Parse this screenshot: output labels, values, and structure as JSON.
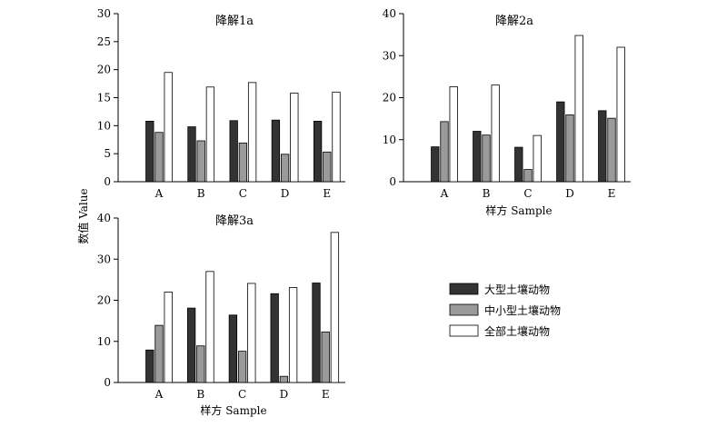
{
  "colors": {
    "large": "#333333",
    "medium": "#9a9a9a",
    "all": "#ffffff",
    "axis": "#000000"
  },
  "y_axis_shared_label": "数值 Value",
  "legend": {
    "items": [
      {
        "label": "大型土壤动物",
        "color": "#333333"
      },
      {
        "label": "中小型土壤动物",
        "color": "#9a9a9a"
      },
      {
        "label": "全部土壤动物",
        "color": "#ffffff"
      }
    ]
  },
  "chart_data": [
    {
      "type": "bar",
      "title": "降解1a",
      "xlabel": "",
      "ylabel": "数值 Value",
      "categories": [
        "A",
        "B",
        "C",
        "D",
        "E"
      ],
      "ylim": [
        0,
        30
      ],
      "yticks": [
        0,
        5,
        10,
        15,
        20,
        25,
        30
      ],
      "series": [
        {
          "name": "大型土壤动物",
          "values": [
            10.8,
            9.8,
            10.9,
            11.0,
            10.8
          ]
        },
        {
          "name": "中小型土壤动物",
          "values": [
            8.8,
            7.3,
            6.9,
            4.9,
            5.3
          ]
        },
        {
          "name": "全部土壤动物",
          "values": [
            19.5,
            16.9,
            17.7,
            15.8,
            16.0
          ]
        }
      ]
    },
    {
      "type": "bar",
      "title": "降解2a",
      "xlabel": "样方 Sample",
      "ylabel": "",
      "categories": [
        "A",
        "B",
        "C",
        "D",
        "E"
      ],
      "ylim": [
        0,
        40
      ],
      "yticks": [
        0,
        10,
        20,
        30,
        40
      ],
      "series": [
        {
          "name": "大型土壤动物",
          "values": [
            8.3,
            12.0,
            8.2,
            19.0,
            16.9
          ]
        },
        {
          "name": "中小型土壤动物",
          "values": [
            14.3,
            11.1,
            2.9,
            15.9,
            15.1
          ]
        },
        {
          "name": "全部土壤动物",
          "values": [
            22.6,
            23.0,
            11.0,
            34.8,
            32.0
          ]
        }
      ]
    },
    {
      "type": "bar",
      "title": "降解3a",
      "xlabel": "样方 Sample",
      "ylabel": "",
      "categories": [
        "A",
        "B",
        "C",
        "D",
        "E"
      ],
      "ylim": [
        0,
        40
      ],
      "yticks": [
        0,
        10,
        20,
        30,
        40
      ],
      "series": [
        {
          "name": "大型土壤动物",
          "values": [
            7.9,
            18.1,
            16.4,
            21.6,
            24.2
          ]
        },
        {
          "name": "中小型土壤动物",
          "values": [
            13.9,
            8.9,
            7.6,
            1.5,
            12.3
          ]
        },
        {
          "name": "全部土壤动物",
          "values": [
            22.0,
            27.0,
            24.1,
            23.1,
            36.5
          ]
        }
      ]
    }
  ]
}
